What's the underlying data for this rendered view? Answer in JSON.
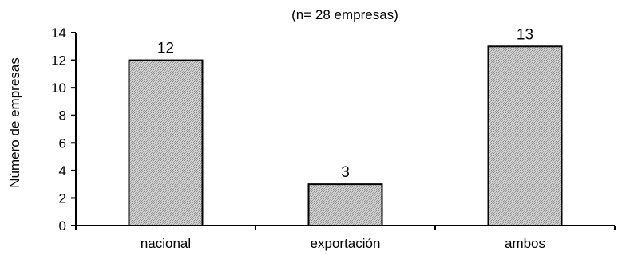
{
  "chart_data": {
    "type": "bar",
    "subtitle": "(n= 28 empresas)",
    "xlabel": "",
    "ylabel": "Número de empresas",
    "categories": [
      "nacional",
      "exportación",
      "ambos"
    ],
    "values": [
      12,
      3,
      13
    ],
    "data_labels": [
      "12",
      "3",
      "13"
    ],
    "ylim": [
      0,
      14
    ],
    "yticks": [
      0,
      2,
      4,
      6,
      8,
      10,
      12,
      14
    ],
    "grid": false,
    "legend": "none",
    "bar_fill": "#c8c8c8",
    "bar_stroke": "#000000"
  }
}
